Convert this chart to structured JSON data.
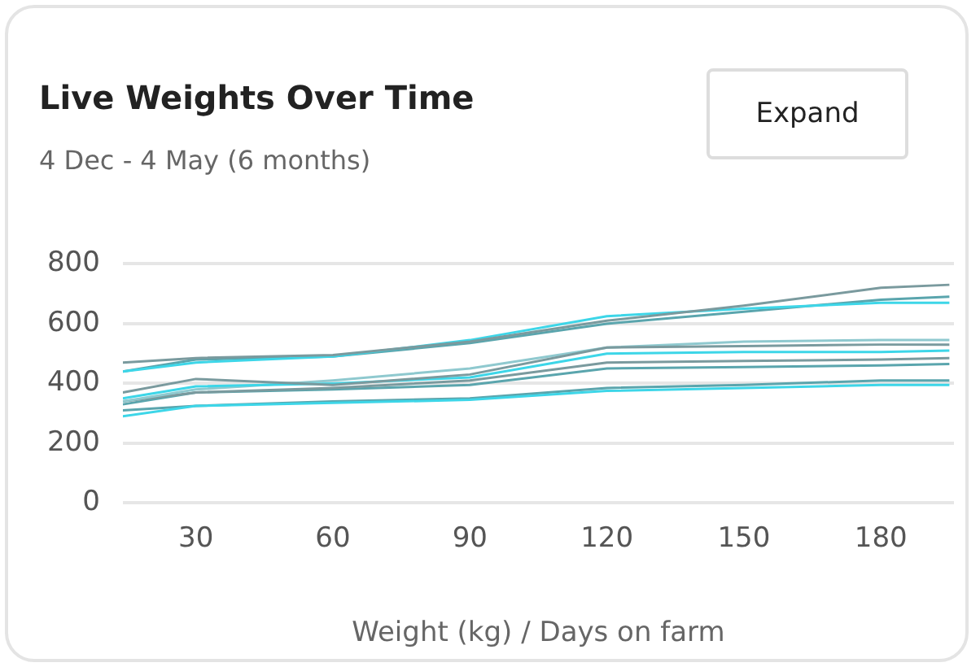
{
  "chart_data": {
    "type": "line",
    "title": "Live Weights Over Time",
    "subtitle": "4 Dec - 4 May (6 months)",
    "xlabel": "Weight (kg) / Days on farm",
    "annotations": [
      "Expand"
    ],
    "x": [
      14,
      30,
      60,
      90,
      120,
      150,
      180,
      195
    ],
    "xlim": [
      14,
      196
    ],
    "xticks": [
      30,
      60,
      90,
      120,
      150,
      180
    ],
    "ylim": [
      0,
      800
    ],
    "yticks": [
      0,
      200,
      400,
      600,
      800
    ],
    "grid": "y",
    "legend": false,
    "marker": "none",
    "line_style": "solid",
    "series": [
      {
        "color": "#7a9a9e",
        "values": [
          470,
          485,
          495,
          540,
          610,
          660,
          720,
          730
        ]
      },
      {
        "color": "#3dd6e8",
        "values": [
          440,
          470,
          490,
          545,
          625,
          650,
          670,
          670
        ]
      },
      {
        "color": "#5aa5ad",
        "values": [
          440,
          480,
          490,
          535,
          600,
          640,
          680,
          690
        ]
      },
      {
        "color": "#7a9a9e",
        "values": [
          370,
          415,
          395,
          430,
          520,
          525,
          530,
          530
        ]
      },
      {
        "color": "#3dd6e8",
        "values": [
          350,
          390,
          400,
          420,
          500,
          505,
          505,
          510
        ]
      },
      {
        "color": "#8fc9cf",
        "values": [
          340,
          380,
          410,
          450,
          520,
          540,
          545,
          545
        ]
      },
      {
        "color": "#7a9a9e",
        "values": [
          340,
          370,
          385,
          410,
          470,
          475,
          480,
          485
        ]
      },
      {
        "color": "#5aa5ad",
        "values": [
          330,
          370,
          380,
          395,
          450,
          455,
          460,
          465
        ]
      },
      {
        "color": "#3dd6e8",
        "values": [
          290,
          325,
          335,
          345,
          375,
          385,
          395,
          395
        ]
      },
      {
        "color": "#5aa5ad",
        "values": [
          310,
          325,
          340,
          350,
          385,
          395,
          410,
          410
        ]
      }
    ]
  }
}
